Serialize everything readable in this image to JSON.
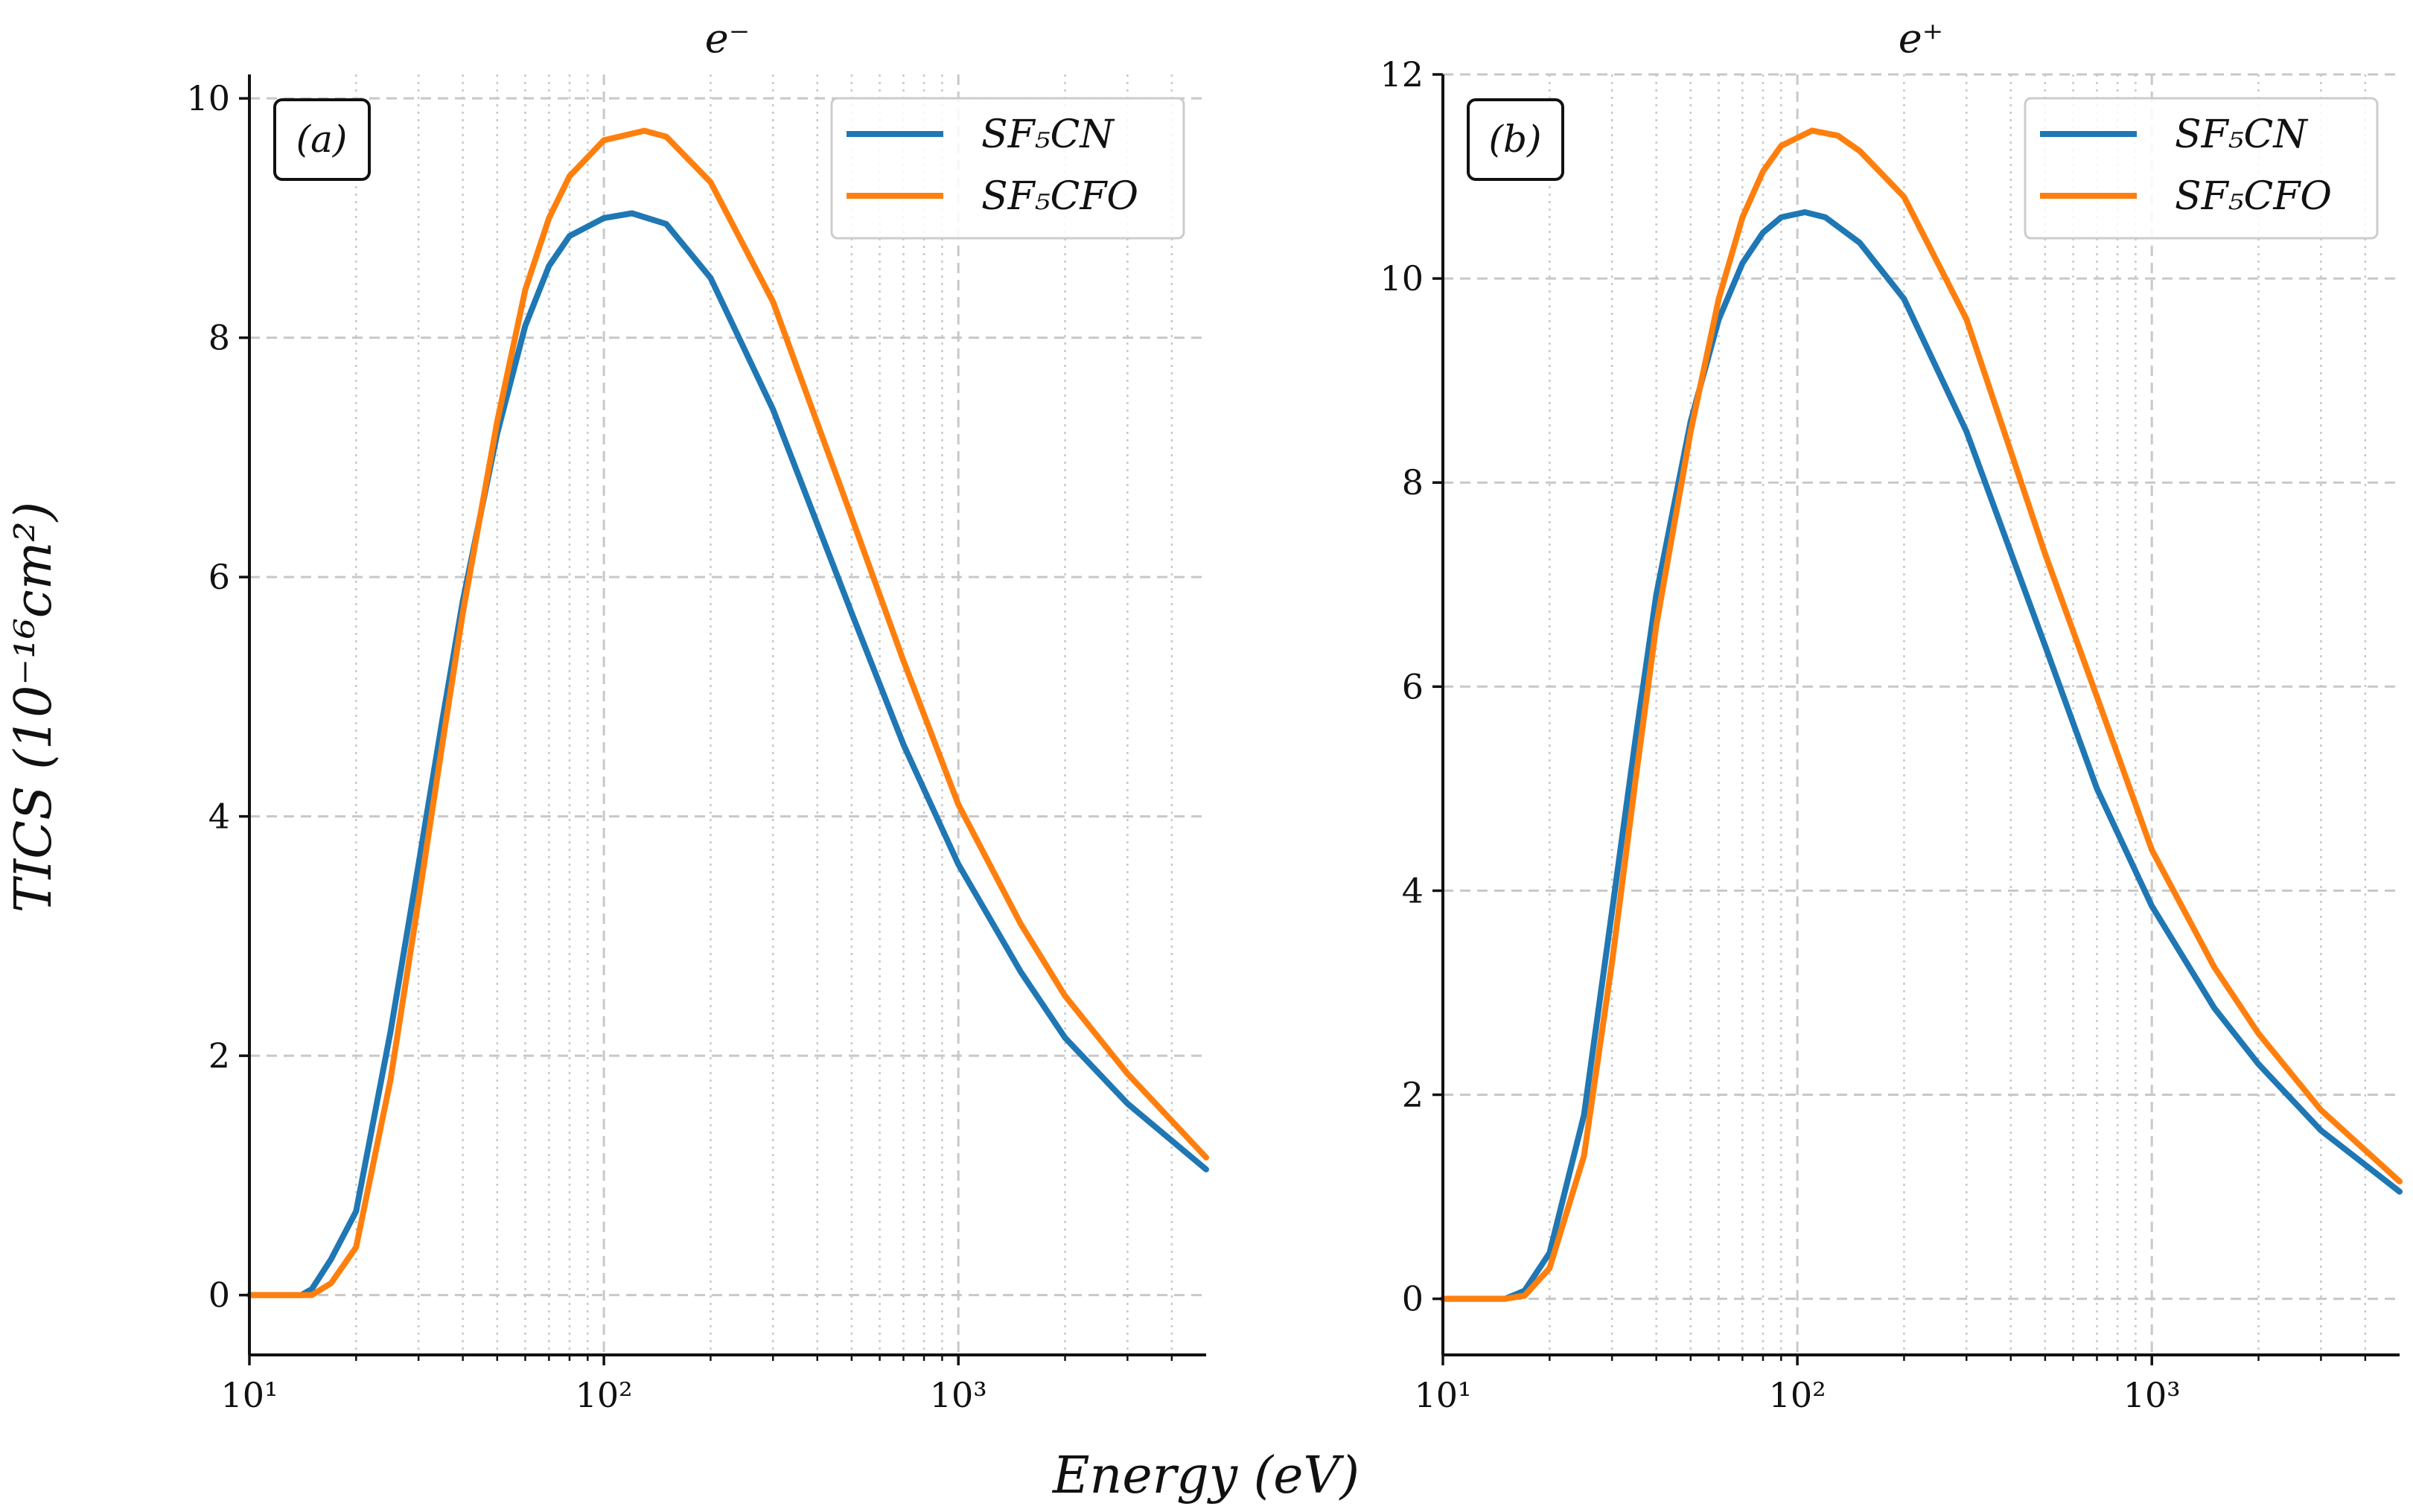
{
  "figure": {
    "ylabel": "TICS (10⁻¹⁶cm²)",
    "xlabel": "Energy (eV)"
  },
  "colors": {
    "SF5CN": "#1f77b4",
    "SF5CFO": "#ff7f0e",
    "grid": "#c8c8c8",
    "axis": "#111111"
  },
  "chart_data": [
    {
      "type": "line",
      "title": "e⁻",
      "panel_label": "(a)",
      "xscale": "log",
      "xlim": [
        10,
        5000
      ],
      "ylim": [
        -0.5,
        10.2
      ],
      "xticks": [
        10,
        100,
        1000
      ],
      "xtick_labels": [
        "10¹",
        "10²",
        "10³"
      ],
      "yticks": [
        0,
        2,
        4,
        6,
        8,
        10
      ],
      "ytick_labels": [
        "0",
        "2",
        "4",
        "6",
        "8",
        "10"
      ],
      "legend_position": "top-right",
      "grid": true,
      "series": [
        {
          "name": "SF₅CN",
          "color_key": "SF5CN",
          "x": [
            10,
            14,
            15,
            17,
            20,
            25,
            30,
            35,
            40,
            50,
            60,
            70,
            80,
            100,
            120,
            150,
            200,
            300,
            500,
            700,
            1000,
            1500,
            2000,
            3000,
            5000
          ],
          "y": [
            0,
            0,
            0.05,
            0.3,
            0.7,
            2.2,
            3.6,
            4.8,
            5.8,
            7.2,
            8.1,
            8.6,
            8.85,
            9.0,
            9.04,
            8.95,
            8.5,
            7.4,
            5.7,
            4.6,
            3.6,
            2.7,
            2.15,
            1.6,
            1.05
          ]
        },
        {
          "name": "SF₅CFO",
          "color_key": "SF5CFO",
          "x": [
            10,
            15,
            17,
            20,
            25,
            30,
            35,
            40,
            50,
            60,
            70,
            80,
            100,
            130,
            150,
            200,
            300,
            500,
            700,
            1000,
            1500,
            2000,
            3000,
            5000
          ],
          "y": [
            0,
            0,
            0.1,
            0.4,
            1.8,
            3.3,
            4.6,
            5.7,
            7.3,
            8.4,
            9.0,
            9.35,
            9.65,
            9.73,
            9.68,
            9.3,
            8.3,
            6.5,
            5.3,
            4.1,
            3.1,
            2.5,
            1.85,
            1.15
          ]
        }
      ]
    },
    {
      "type": "line",
      "title": "e⁺",
      "panel_label": "(b)",
      "xscale": "log",
      "xlim": [
        10,
        5000
      ],
      "ylim": [
        -0.55,
        12.0
      ],
      "xticks": [
        10,
        100,
        1000
      ],
      "xtick_labels": [
        "10¹",
        "10²",
        "10³"
      ],
      "yticks": [
        0,
        2,
        4,
        6,
        8,
        10,
        12
      ],
      "ytick_labels": [
        "0",
        "2",
        "4",
        "6",
        "8",
        "10",
        "12"
      ],
      "legend_position": "top-right",
      "grid": true,
      "series": [
        {
          "name": "SF₅CN",
          "color_key": "SF5CN",
          "x": [
            10,
            15,
            17,
            20,
            25,
            30,
            35,
            40,
            50,
            60,
            70,
            80,
            90,
            105,
            120,
            150,
            200,
            300,
            500,
            700,
            1000,
            1500,
            2000,
            3000,
            5000
          ],
          "y": [
            0,
            0,
            0.08,
            0.45,
            1.8,
            3.8,
            5.5,
            6.9,
            8.6,
            9.6,
            10.15,
            10.45,
            10.6,
            10.65,
            10.6,
            10.35,
            9.8,
            8.5,
            6.4,
            5.0,
            3.85,
            2.85,
            2.3,
            1.65,
            1.05
          ]
        },
        {
          "name": "SF₅CFO",
          "color_key": "SF5CFO",
          "x": [
            10,
            15,
            17,
            20,
            25,
            30,
            35,
            40,
            50,
            60,
            70,
            80,
            90,
            110,
            130,
            150,
            200,
            300,
            500,
            700,
            1000,
            1500,
            2000,
            3000,
            5000
          ],
          "y": [
            0,
            0,
            0.03,
            0.3,
            1.4,
            3.3,
            5.1,
            6.6,
            8.5,
            9.8,
            10.6,
            11.05,
            11.3,
            11.45,
            11.4,
            11.25,
            10.8,
            9.6,
            7.3,
            5.9,
            4.4,
            3.25,
            2.6,
            1.85,
            1.15
          ]
        }
      ]
    }
  ]
}
